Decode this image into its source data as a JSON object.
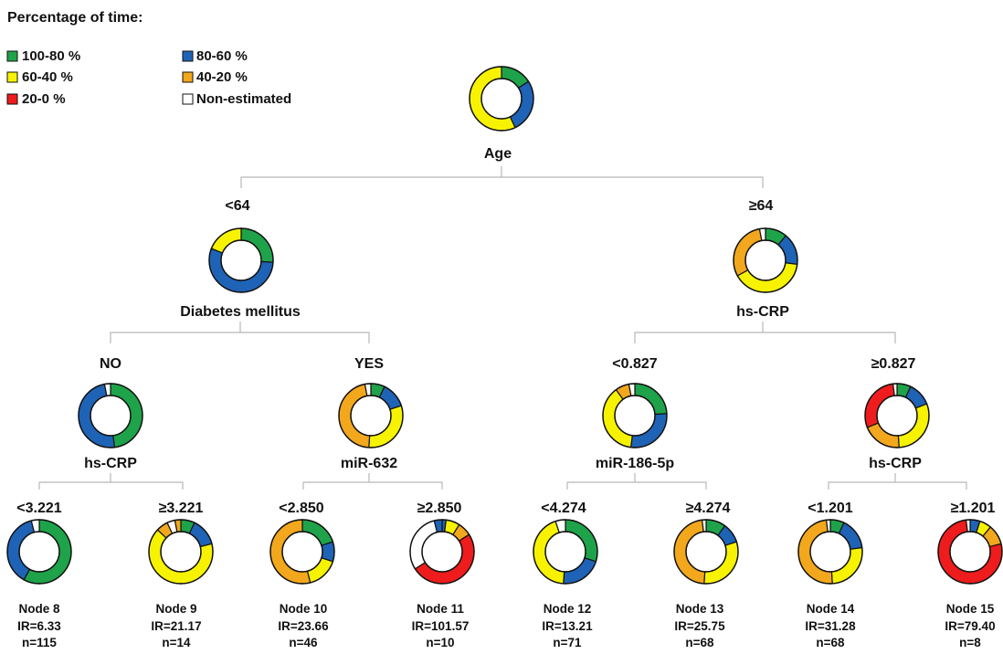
{
  "legend": {
    "title": "Percentage of time:",
    "items": [
      {
        "key": "g",
        "label": "100-80 %",
        "color": "#1fa34a"
      },
      {
        "key": "b",
        "label": "80-60 %",
        "color": "#1f63b6"
      },
      {
        "key": "y",
        "label": "60-40 %",
        "color": "#f7f300"
      },
      {
        "key": "o",
        "label": "40-20 %",
        "color": "#f2a71c"
      },
      {
        "key": "r",
        "label": "20-0 %",
        "color": "#ee1c1c"
      },
      {
        "key": "w",
        "label": "Non-estimated",
        "color": "#ffffff"
      }
    ]
  },
  "nodes": {
    "root": {
      "label": "Age",
      "ring": [
        [
          "g",
          0.16
        ],
        [
          "b",
          0.27
        ],
        [
          "y",
          0.57
        ]
      ]
    },
    "n_lt64": {
      "split": "<64",
      "label": "Diabetes mellitus",
      "ring": [
        [
          "g",
          0.26
        ],
        [
          "b",
          0.55
        ],
        [
          "y",
          0.19
        ]
      ]
    },
    "n_ge64": {
      "split": "≥64",
      "label": "hs-CRP",
      "ring": [
        [
          "g",
          0.11
        ],
        [
          "b",
          0.16
        ],
        [
          "y",
          0.4
        ],
        [
          "o",
          0.3
        ],
        [
          "w",
          0.03
        ]
      ]
    },
    "n_no": {
      "split": "NO",
      "label": "hs-CRP",
      "ring": [
        [
          "g",
          0.48
        ],
        [
          "b",
          0.49
        ],
        [
          "w",
          0.03
        ]
      ]
    },
    "n_yes": {
      "split": "YES",
      "label": "miR-632",
      "ring": [
        [
          "g",
          0.07
        ],
        [
          "b",
          0.13
        ],
        [
          "y",
          0.31
        ],
        [
          "o",
          0.46
        ],
        [
          "w",
          0.03
        ]
      ]
    },
    "n_lt0827": {
      "split": "<0.827",
      "label": "miR-186-5p",
      "ring": [
        [
          "g",
          0.24
        ],
        [
          "b",
          0.28
        ],
        [
          "y",
          0.38
        ],
        [
          "o",
          0.07
        ],
        [
          "w",
          0.03
        ]
      ]
    },
    "n_ge0827": {
      "split": "≥0.827",
      "label": "hs-CRP",
      "ring": [
        [
          "g",
          0.07
        ],
        [
          "b",
          0.12
        ],
        [
          "y",
          0.3
        ],
        [
          "o",
          0.2
        ],
        [
          "r",
          0.29
        ],
        [
          "w",
          0.02
        ]
      ]
    }
  },
  "leaves": [
    {
      "split": "<3.221",
      "node": "Node 8",
      "ir": "IR=6.33",
      "n": "n=115",
      "ring": [
        [
          "g",
          0.58
        ],
        [
          "b",
          0.38
        ],
        [
          "w",
          0.04
        ]
      ]
    },
    {
      "split": "≥3.221",
      "node": "Node 9",
      "ir": "IR=21.17",
      "n": "n=14",
      "ring": [
        [
          "g",
          0.07
        ],
        [
          "b",
          0.14
        ],
        [
          "y",
          0.66
        ],
        [
          "o",
          0.06
        ],
        [
          "w",
          0.04
        ],
        [
          "o",
          0.03
        ]
      ]
    },
    {
      "split": "<2.850",
      "node": "Node 10",
      "ir": "IR=23.66",
      "n": "n=46",
      "ring": [
        [
          "g",
          0.2
        ],
        [
          "b",
          0.1
        ],
        [
          "y",
          0.16
        ],
        [
          "o",
          0.54
        ]
      ]
    },
    {
      "split": "≥2.850",
      "node": "Node 11",
      "ir": "IR=101.57",
      "n": "n=10",
      "ring": [
        [
          "b",
          0.02
        ],
        [
          "y",
          0.07
        ],
        [
          "o",
          0.07
        ],
        [
          "r",
          0.5
        ],
        [
          "w",
          0.3
        ],
        [
          "b",
          0.04
        ]
      ]
    },
    {
      "split": "<4.274",
      "node": "Node 12",
      "ir": "IR=13.21",
      "n": "n=71",
      "ring": [
        [
          "g",
          0.3
        ],
        [
          "b",
          0.21
        ],
        [
          "y",
          0.44
        ],
        [
          "w",
          0.05
        ]
      ]
    },
    {
      "split": "≥4.274",
      "node": "Node 13",
      "ir": "IR=25.75",
      "n": "n=68",
      "ring": [
        [
          "g",
          0.1
        ],
        [
          "b",
          0.1
        ],
        [
          "y",
          0.31
        ],
        [
          "o",
          0.47
        ],
        [
          "w",
          0.02
        ]
      ]
    },
    {
      "split": "<1.201",
      "node": "Node 14",
      "ir": "IR=31.28",
      "n": "n=68",
      "ring": [
        [
          "g",
          0.07
        ],
        [
          "b",
          0.16
        ],
        [
          "y",
          0.26
        ],
        [
          "o",
          0.49
        ],
        [
          "w",
          0.02
        ]
      ]
    },
    {
      "split": "≥1.201",
      "node": "Node 15",
      "ir": "IR=79.40",
      "n": "n=8",
      "ring": [
        [
          "b",
          0.05
        ],
        [
          "y",
          0.06
        ],
        [
          "o",
          0.1
        ],
        [
          "r",
          0.77
        ],
        [
          "w",
          0.02
        ]
      ]
    }
  ]
}
